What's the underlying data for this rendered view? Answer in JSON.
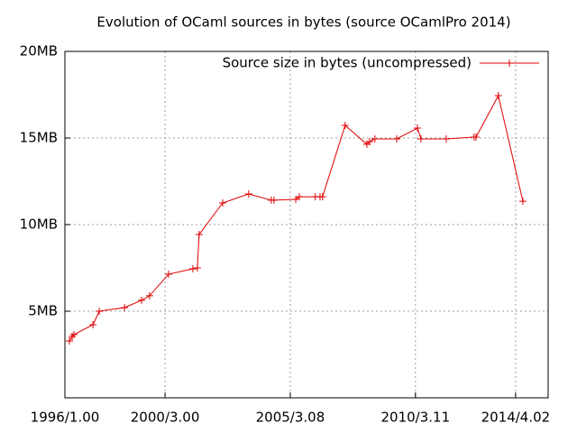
{
  "chart_data": {
    "type": "line",
    "title": "Evolution of OCaml sources in bytes (source OCamlPro 2014)",
    "x": [
      1996.18,
      1996.29,
      1996.36,
      1997.12,
      1997.37,
      1998.38,
      1999.06,
      1999.38,
      2000.14,
      2001.11,
      2001.29,
      2001.36,
      2002.3,
      2003.34,
      2004.24,
      2004.35,
      2005.22,
      2005.36,
      2006.0,
      2006.19,
      2006.29,
      2007.19,
      2008.06,
      2008.17,
      2008.38,
      2009.25,
      2010.08,
      2010.22,
      2011.23,
      2012.34,
      2012.42,
      2013.31,
      2014.29
    ],
    "series": [
      {
        "name": "Source size in bytes (uncompressed)",
        "color": "#e00000",
        "values": [
          3.28,
          3.54,
          3.65,
          4.22,
          5.0,
          5.21,
          5.63,
          5.89,
          7.14,
          7.45,
          7.5,
          9.43,
          11.25,
          11.77,
          11.41,
          11.41,
          11.46,
          11.61,
          11.61,
          11.61,
          11.61,
          15.73,
          14.64,
          14.79,
          14.95,
          14.95,
          15.57,
          14.95,
          14.95,
          15.05,
          15.05,
          17.45,
          11.35
        ]
      }
    ],
    "xlim": [
      1996,
      2015.3
    ],
    "xticks": [
      {
        "value": 1996,
        "label": "1996/1.00"
      },
      {
        "value": 2000,
        "label": "2000/3.00"
      },
      {
        "value": 2005,
        "label": "2005/3.08"
      },
      {
        "value": 2010,
        "label": "2010/3.11"
      },
      {
        "value": 2014,
        "label": "2014/4.02"
      }
    ],
    "ylim": [
      0,
      20
    ],
    "yticks": [
      {
        "value": 5,
        "label": "5MB"
      },
      {
        "value": 10,
        "label": "10MB"
      },
      {
        "value": 15,
        "label": "15MB"
      },
      {
        "value": 20,
        "label": "20MB"
      }
    ],
    "grid": true,
    "legend": "top-right"
  }
}
